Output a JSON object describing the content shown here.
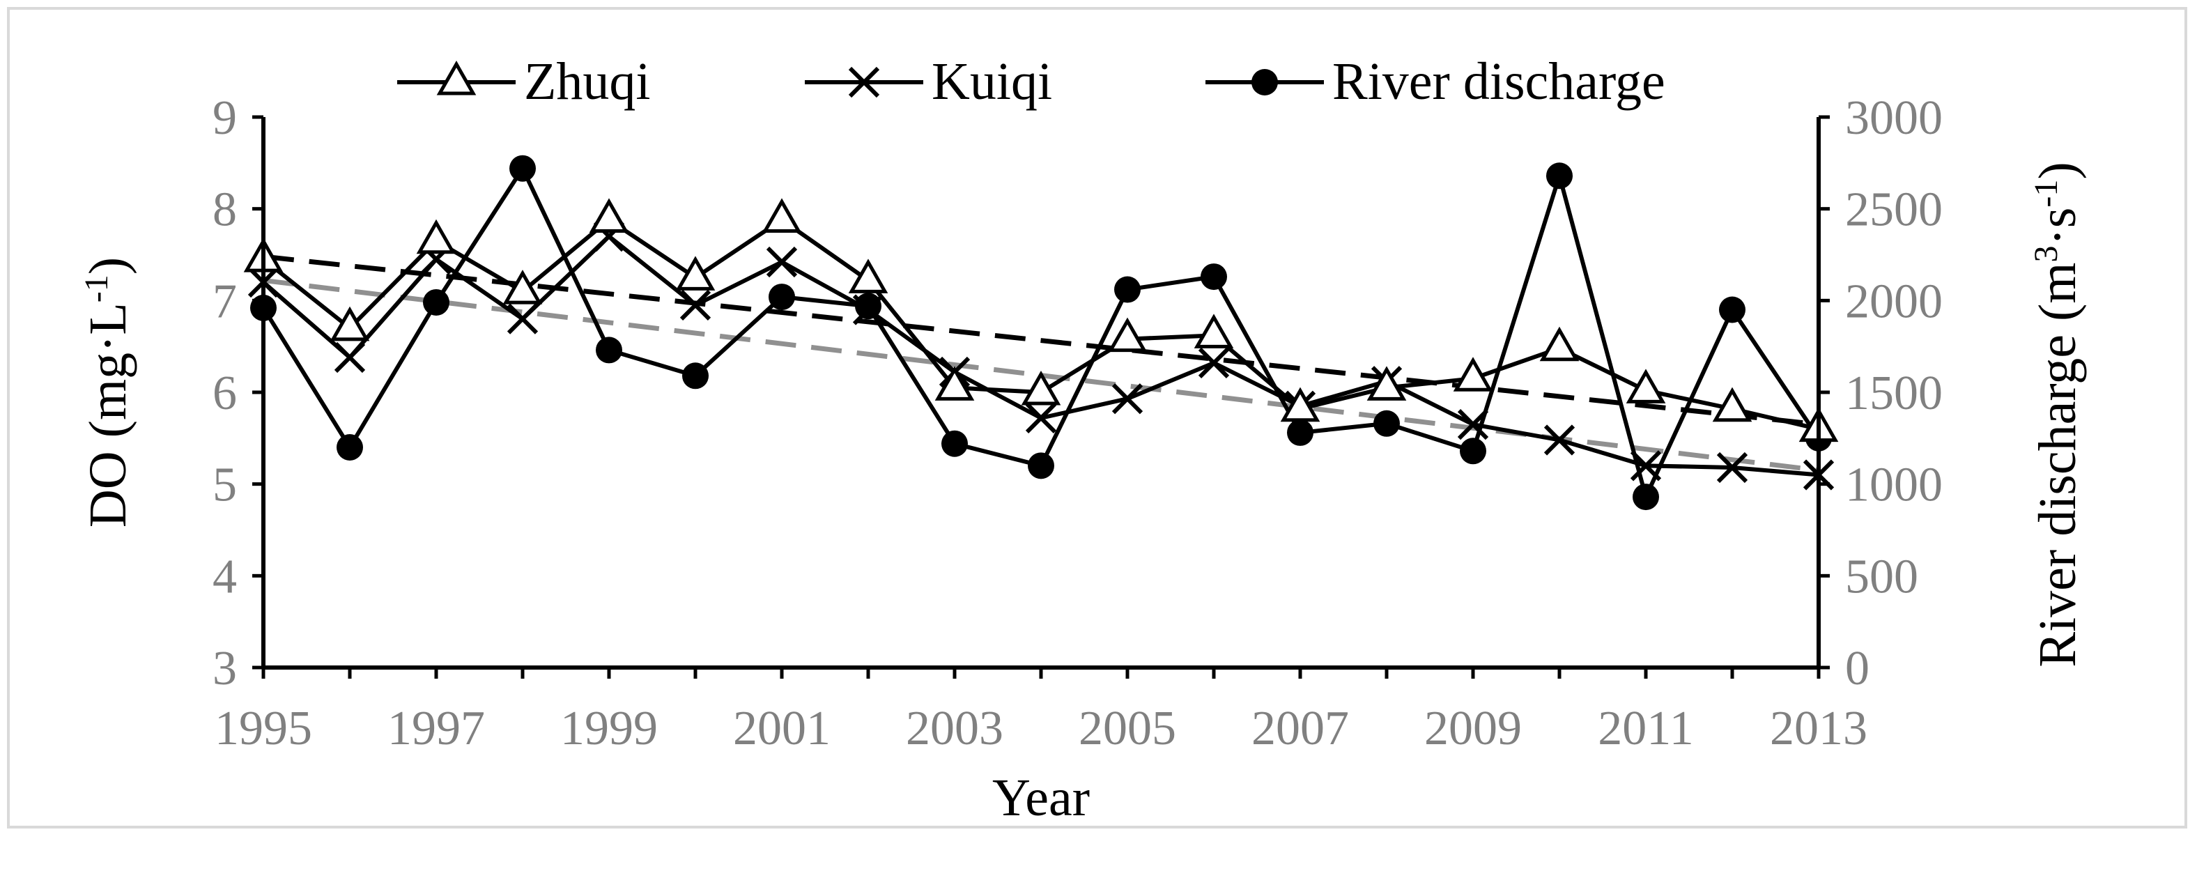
{
  "chart_data": {
    "type": "line",
    "x": [
      1995,
      1996,
      1997,
      1998,
      1999,
      2000,
      2001,
      2002,
      2003,
      2004,
      2005,
      2006,
      2007,
      2008,
      2009,
      2010,
      2011,
      2012,
      2013
    ],
    "xlabel": "Year",
    "x_tick_labels": [
      "1995",
      "1997",
      "1999",
      "2001",
      "2003",
      "2005",
      "2007",
      "2009",
      "2011",
      "2013"
    ],
    "y_left": {
      "label_main": "DO (mg·L",
      "label_sup": "-1",
      "label_end": ")",
      "range": [
        3,
        9
      ],
      "ticks": [
        "3",
        "4",
        "5",
        "6",
        "7",
        "8",
        "9"
      ]
    },
    "y_right": {
      "label_main": "River discharge (m",
      "label_sup1": "3",
      "label_mid": "·s",
      "label_sup2": "-1",
      "label_end": ")",
      "range": [
        0,
        3000
      ],
      "ticks": [
        "0",
        "500",
        "1000",
        "1500",
        "2000",
        "2500",
        "3000"
      ]
    },
    "series": [
      {
        "name": "Zhuqi",
        "axis": "left",
        "marker": "triangle",
        "values": [
          7.45,
          6.7,
          7.65,
          7.1,
          7.88,
          7.25,
          7.88,
          7.22,
          6.05,
          6.0,
          6.58,
          6.62,
          5.82,
          6.05,
          6.15,
          6.48,
          6.02,
          5.82,
          5.6
        ]
      },
      {
        "name": "Kuiqi",
        "axis": "left",
        "marker": "x",
        "values": [
          7.2,
          6.38,
          7.45,
          6.8,
          7.7,
          6.95,
          7.42,
          6.9,
          6.22,
          5.72,
          5.93,
          6.32,
          5.85,
          6.12,
          5.65,
          5.48,
          5.2,
          5.18,
          5.1
        ]
      },
      {
        "name": "River discharge",
        "axis": "right",
        "marker": "circle",
        "values": [
          1960,
          1200,
          1990,
          2720,
          1730,
          1590,
          2020,
          1970,
          1220,
          1100,
          2060,
          2130,
          1280,
          1330,
          1180,
          2680,
          930,
          1950,
          1250
        ]
      }
    ],
    "trendlines": [
      {
        "axis": "left",
        "style": "dashed",
        "color": "#000000",
        "start": 7.48,
        "end": 5.65
      },
      {
        "axis": "left",
        "style": "dashed",
        "color": "#909090",
        "start": 7.22,
        "end": 5.15
      }
    ],
    "legend_position": "top",
    "grid": false
  }
}
